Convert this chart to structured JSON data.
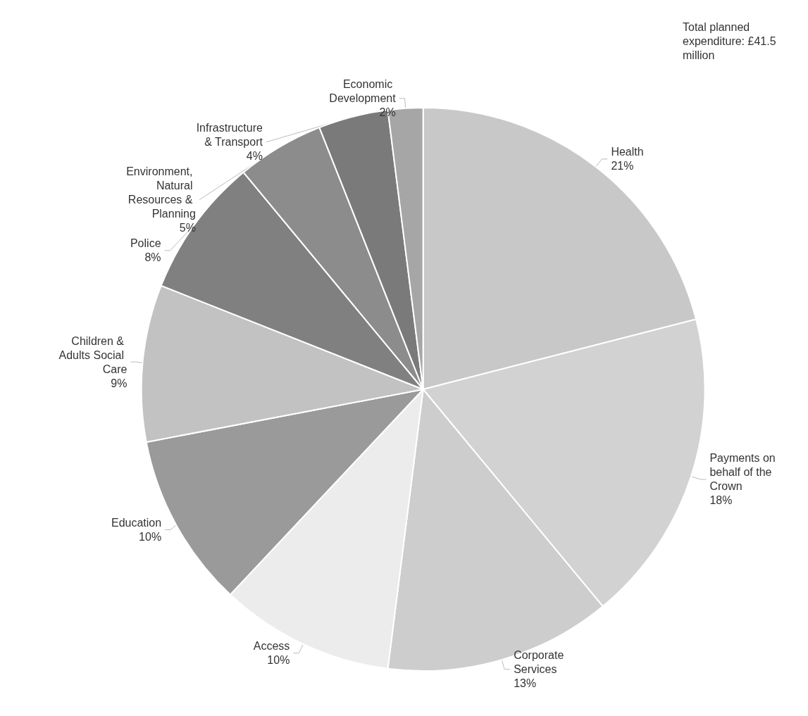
{
  "chart_data": {
    "type": "pie",
    "categories": [
      "Health",
      "Payments on behalf of the Crown",
      "Corporate Services",
      "Access",
      "Education",
      "Children & Adults Social Care",
      "Police",
      "Environment, Natural Resources & Planning",
      "Infrastructure & Transport",
      "Economic Development"
    ],
    "values": [
      21,
      18,
      13,
      10,
      10,
      9,
      8,
      5,
      4,
      2
    ],
    "colors": [
      "#c8c8c8",
      "#d2d2d2",
      "#cdcdcd",
      "#ececec",
      "#9a9a9a",
      "#c2c2c2",
      "#808080",
      "#8c8c8c",
      "#7a7a7a",
      "#a6a6a6"
    ],
    "value_labels": [
      "21%",
      "18%",
      "13%",
      "10%",
      "10%",
      "9%",
      "8%",
      "5%",
      "4%",
      "2%"
    ],
    "legend": false,
    "annotations": [
      "Total planned expenditure: £41.5 million"
    ]
  }
}
